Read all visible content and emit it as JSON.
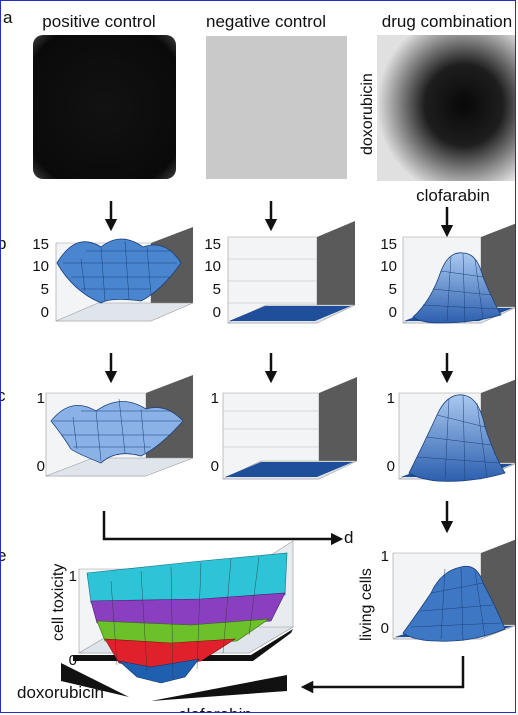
{
  "panel_letters": {
    "a": "a",
    "b": "b",
    "c": "c",
    "d": "d",
    "e": "e"
  },
  "column_titles": {
    "positive": "positive control",
    "negative": "negative control",
    "drug": "drug combination"
  },
  "heatmap_axes": {
    "y": "doxorubicin",
    "x": "clofarabin"
  },
  "row_b": {
    "ticks": [
      "15",
      "10",
      "5",
      "0"
    ]
  },
  "row_c": {
    "ticks": [
      "1",
      "0"
    ]
  },
  "panel_d": {
    "ylabel": "living cells",
    "ticks": [
      "1",
      "0"
    ]
  },
  "panel_e": {
    "ylabel": "cell toxicity",
    "ticks": [
      "1",
      "0"
    ],
    "xlabel": "clofarabin",
    "depth_label": "doxorubicin"
  },
  "colors": {
    "surface": "#4a86d0",
    "flat": "#1f4e9a",
    "wall": "#5a5a5a",
    "floor": "#dfe5ea",
    "arrow": "#111111",
    "band_cyan": "#2cc4d6",
    "band_purple": "#8a3fc0",
    "band_green": "#6cc02a",
    "band_red": "#e0202a"
  }
}
